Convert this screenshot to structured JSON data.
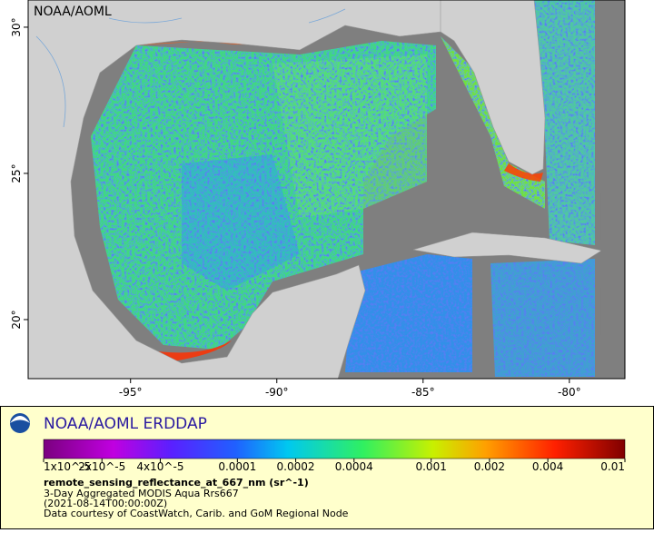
{
  "map": {
    "title": "NOAA/AOML",
    "lonlim": [
      -98.5,
      -78.1
    ],
    "latlim": [
      17.98,
      30.93
    ],
    "lon_ticks": [
      {
        "value": -95,
        "label": "-95°"
      },
      {
        "value": -90,
        "label": "-90°"
      },
      {
        "value": -85,
        "label": "-85°"
      },
      {
        "value": -80,
        "label": "-80°"
      }
    ],
    "lat_ticks": [
      {
        "value": 20,
        "label": "20°"
      },
      {
        "value": 25,
        "label": "25°"
      },
      {
        "value": 30,
        "label": "30°"
      }
    ]
  },
  "legend": {
    "title": "NOAA/AOML ERDDAP",
    "colorbar": {
      "scale": "log",
      "lim": [
        1e-05,
        0.01
      ],
      "ticks": [
        {
          "value": 1e-05,
          "label": "1x10^-5"
        },
        {
          "value": 2e-05,
          "label": "2x10^-5"
        },
        {
          "value": 4e-05,
          "label": "4x10^-5"
        },
        0.0001,
        0.0002,
        0.0004,
        0.001,
        0.002,
        0.004,
        0.01
      ]
    },
    "variable": "remote_sensing_reflectance_at_667_nm (sr^-1)",
    "lines": [
      "3-Day Aggregated MODIS Aqua Rrs667",
      "(2021-08-14T00:00:00Z)",
      "Data courtesy of CoastWatch, Carib. and GoM Regional Node"
    ]
  }
}
